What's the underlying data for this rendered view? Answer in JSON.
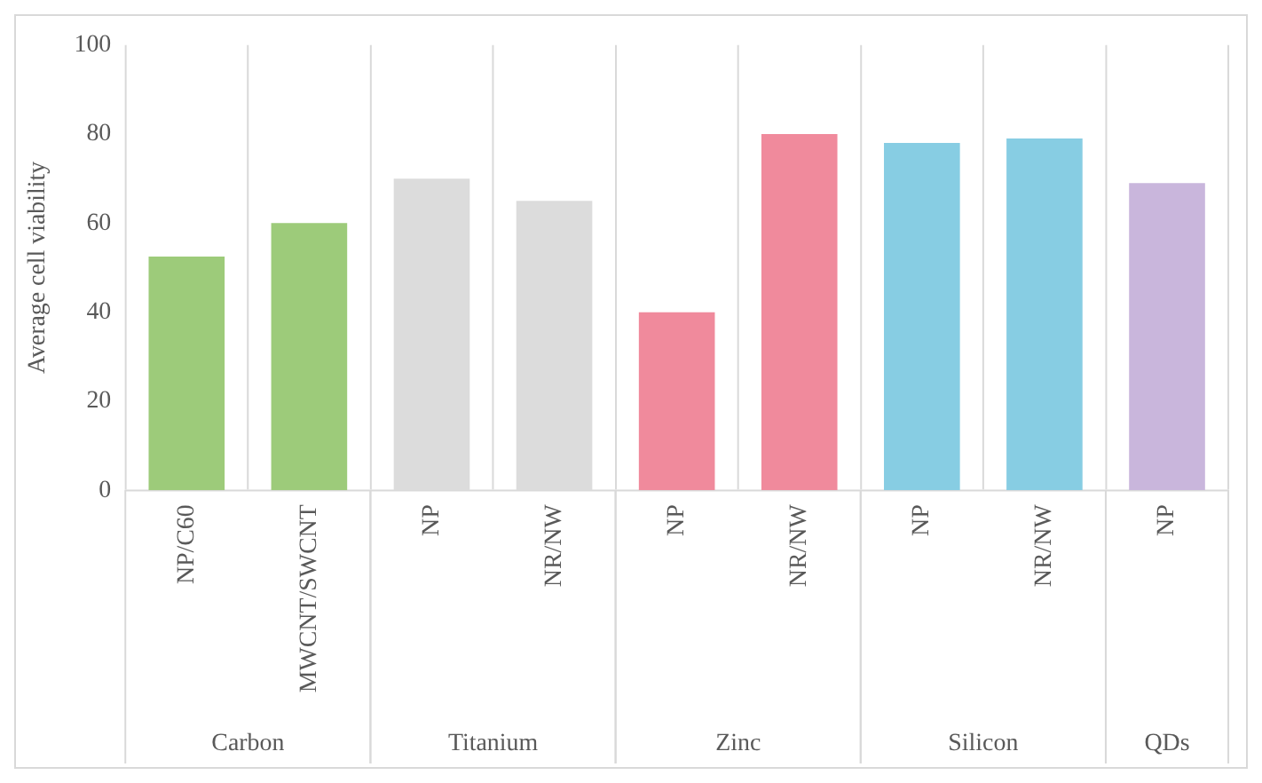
{
  "chart_data": {
    "type": "bar",
    "ylabel": "Average cell viability",
    "categories": [
      "NP/C60",
      "MWCNT/SWCNT",
      "NP",
      "NR/NW",
      "NP",
      "NR/NW",
      "NP",
      "NR/NW",
      "NP"
    ],
    "values": [
      52.5,
      60,
      70,
      65,
      40,
      80,
      78,
      79,
      69
    ],
    "colors": [
      "#9dcb7a",
      "#9dcb7a",
      "#dcdcdc",
      "#dcdcdc",
      "#f08a9c",
      "#f08a9c",
      "#87cde3",
      "#87cde3",
      "#c9b6dc"
    ],
    "annotations": [
      "Carbon",
      "Titanium",
      "Zinc",
      "Silicon",
      "QDs"
    ],
    "ylim": [
      0,
      100
    ],
    "yticks": [
      0,
      20,
      40,
      60,
      80,
      100
    ],
    "grid": "x",
    "legend": false
  }
}
